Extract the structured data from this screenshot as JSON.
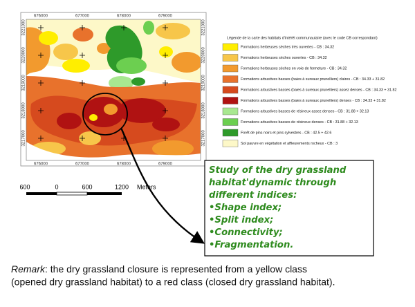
{
  "map": {
    "x_labels": [
      "676000",
      "677000",
      "678000",
      "679000"
    ],
    "y_labels": [
      "3221000",
      "3220000",
      "3219000",
      "3218000",
      "3217000"
    ],
    "scale_bar": [
      "600",
      "0",
      "600",
      "1200",
      "Meters"
    ]
  },
  "legend": {
    "title": "Légende de la carte des habitats d'intérêt communautaire (avec le code CB correspondant)",
    "items": [
      {
        "label": "Formations herbeuses sèches très ouvertes - CB : 34.32",
        "color": "#ffee00"
      },
      {
        "label": "Formations herbeuses sèches ouvertes - CB : 34.32",
        "color": "#f7c64a"
      },
      {
        "label": "Formations herbeuses sèches en voie de fermeture - CB : 34.32",
        "color": "#f29a2e"
      },
      {
        "label": "Formations arbustives basses (baies à sureaux prunelliers) claires - CB : 34.33 + 31.82",
        "color": "#e8722c"
      },
      {
        "label": "Formations arbustives basses (baies à sureaux prunelliers) assez denses - CB : 34.33 + 31.82",
        "color": "#d64a1e"
      },
      {
        "label": "Formations arbustives basses (baies à sureaux prunelliers) denses - CB : 34.33 + 31.82",
        "color": "#b01212"
      },
      {
        "label": "Formations arbustives basses de résineux assez denses - CB : 31.88 + 32.13",
        "color": "#a8e890"
      },
      {
        "label": "Formations arbustives basses de résineux denses - CB : 31.88 + 32.13",
        "color": "#6ccf50"
      },
      {
        "label": "Forêt de pins noirs et pins sylvestres - CB : 42.5 + 42.6",
        "color": "#2e9a2a"
      },
      {
        "label": "Sol pauvre en végétation et affleurements rocheux - CB : 3",
        "color": "#fdf8c8"
      }
    ]
  },
  "study_box": {
    "lines": [
      "Study of the dry grassland",
      "habitat'dynamic through",
      "different indices:",
      "•Shape index;",
      "•Split index;",
      "•Connectivity;",
      "•Fragmentation."
    ]
  },
  "remark": {
    "label": "Remark",
    "line1": ": the dry grassland closure is represented from a yellow class",
    "line2": "(opened dry grassland habitat) to a red class (closed dry grassland habitat)."
  }
}
